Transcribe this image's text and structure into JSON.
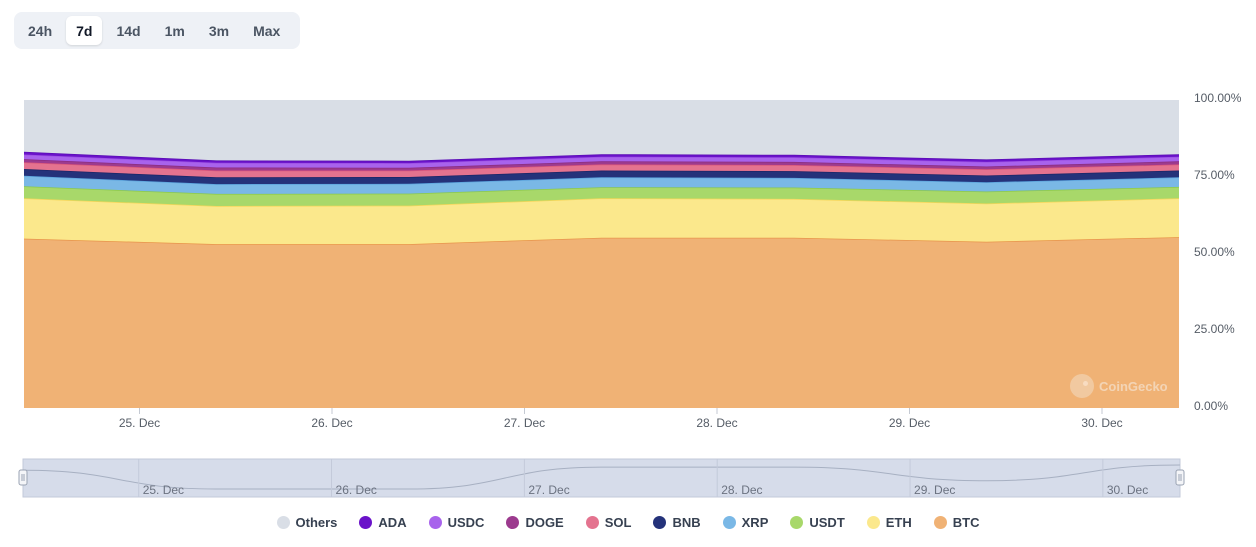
{
  "range_selector": {
    "options": [
      "24h",
      "7d",
      "14d",
      "1m",
      "3m",
      "Max"
    ],
    "active": "7d"
  },
  "watermark": "CoinGecko",
  "chart_data": {
    "type": "area",
    "stacked": true,
    "percent": true,
    "title": "",
    "xlabel": "",
    "ylabel": "",
    "ylim": [
      0,
      100
    ],
    "y_ticks": [
      "100.00%",
      "75.00%",
      "50.00%",
      "25.00%",
      "0.00%"
    ],
    "x_ticks": [
      "25. Dec",
      "26. Dec",
      "27. Dec",
      "28. Dec",
      "29. Dec",
      "30. Dec"
    ],
    "x_range": [
      24.4,
      30.4
    ],
    "x": [
      24.4,
      25.4,
      26.4,
      27.4,
      28.4,
      29.4,
      30.4
    ],
    "legend_position": "bottom",
    "grid": false,
    "series": [
      {
        "name": "BTC",
        "color": "#f0b275",
        "line": "#e8944a",
        "values": [
          55.0,
          53.2,
          53.2,
          55.3,
          55.3,
          54.0,
          55.5
        ]
      },
      {
        "name": "ETH",
        "color": "#fbe88c",
        "line": "#f5d658",
        "values": [
          13.1,
          12.4,
          12.5,
          12.8,
          12.6,
          12.4,
          12.6
        ]
      },
      {
        "name": "USDT",
        "color": "#a8d86a",
        "line": "#8cc94a",
        "values": [
          3.9,
          3.9,
          3.9,
          3.6,
          3.7,
          3.9,
          3.7
        ]
      },
      {
        "name": "XRP",
        "color": "#7ab8e6",
        "line": "#5aa3dc",
        "values": [
          3.4,
          3.2,
          3.2,
          3.2,
          3.1,
          3.0,
          3.1
        ]
      },
      {
        "name": "BNB",
        "color": "#24327a",
        "line": "#1b2566",
        "values": [
          2.2,
          2.2,
          2.2,
          2.2,
          2.2,
          2.2,
          2.2
        ]
      },
      {
        "name": "SOL",
        "color": "#e4738f",
        "line": "#d9557a",
        "values": [
          2.2,
          2.2,
          2.1,
          2.0,
          2.0,
          2.0,
          2.0
        ]
      },
      {
        "name": "DOGE",
        "color": "#9c3a8e",
        "line": "#8a2c80",
        "values": [
          1.0,
          1.0,
          0.9,
          1.0,
          1.0,
          0.9,
          1.0
        ]
      },
      {
        "name": "USDC",
        "color": "#a863ec",
        "line": "#9b4fe4",
        "values": [
          1.5,
          1.5,
          1.5,
          1.5,
          1.5,
          1.5,
          1.5
        ]
      },
      {
        "name": "ADA",
        "color": "#6a12c9",
        "line": "#5a0cb5",
        "values": [
          0.9,
          0.8,
          0.8,
          0.8,
          0.8,
          0.8,
          0.8
        ]
      },
      {
        "name": "Others",
        "color": "#d9dee6",
        "line": "#d9dee6",
        "values": [
          16.8,
          19.6,
          19.7,
          17.6,
          17.8,
          19.3,
          17.6
        ]
      }
    ],
    "legend_order": [
      "Others",
      "ADA",
      "USDC",
      "DOGE",
      "SOL",
      "BNB",
      "XRP",
      "USDT",
      "ETH",
      "BTC"
    ],
    "navigator": {
      "x_ticks": [
        "25. Dec",
        "26. Dec",
        "27. Dec",
        "28. Dec",
        "29. Dec",
        "30. Dec"
      ]
    }
  }
}
